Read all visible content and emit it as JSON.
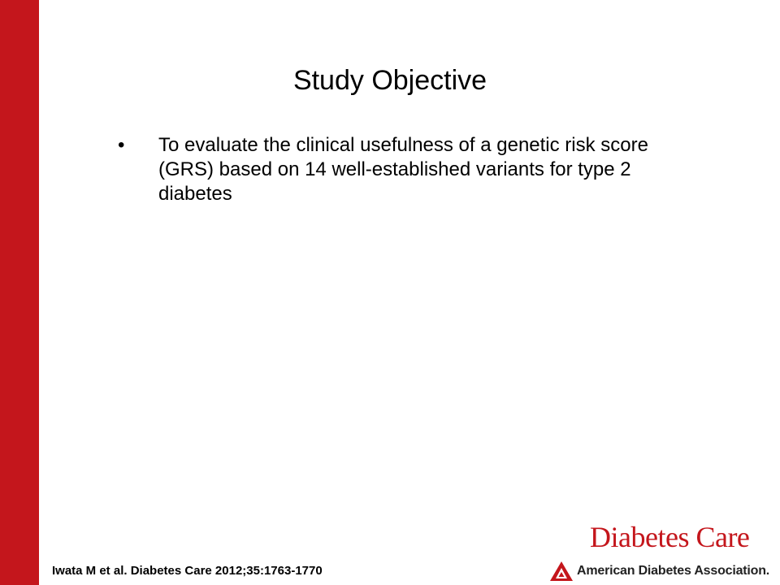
{
  "slide": {
    "title": "Study Objective",
    "bullets": [
      "To evaluate the clinical usefulness of a genetic risk score (GRS) based on 14 well-established variants for type 2 diabetes"
    ],
    "bullet_glyph": "•",
    "citation": "Iwata  M et al. Diabetes Care 2012;35:1763-1770"
  },
  "branding": {
    "journal_name": "Diabetes Care",
    "organization": "American Diabetes Association.",
    "accent_color": "#c4161c"
  }
}
